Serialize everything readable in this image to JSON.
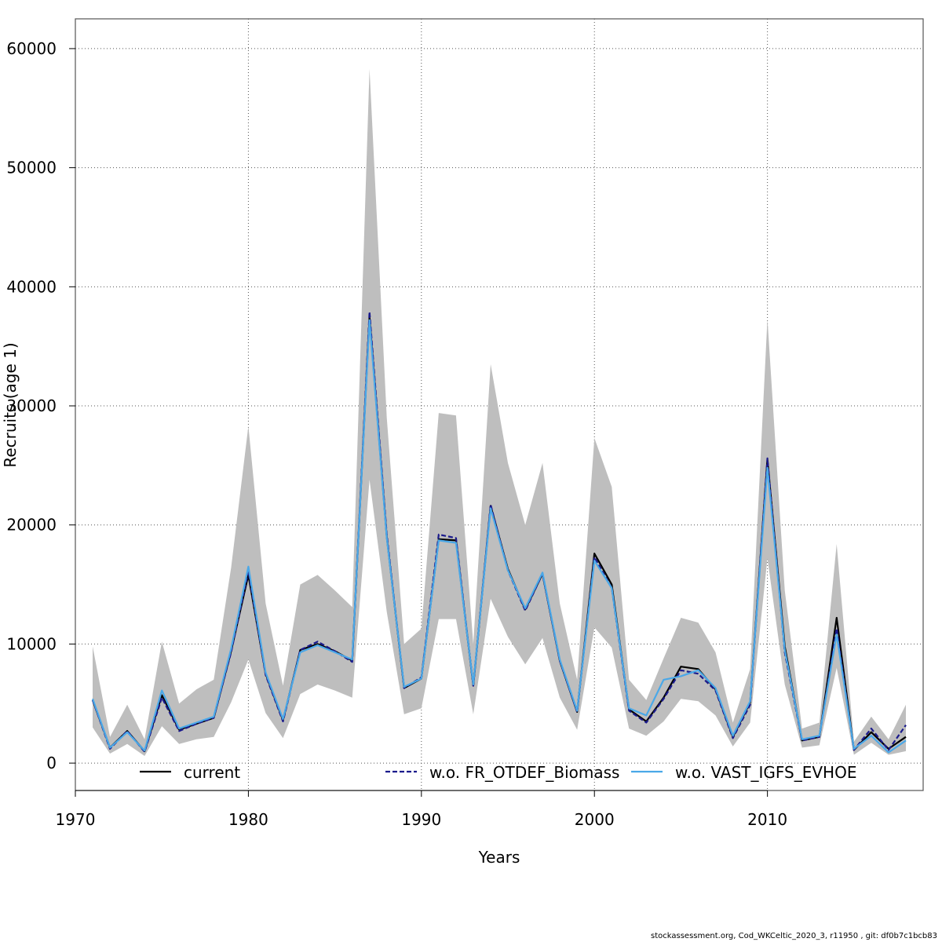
{
  "chart_data": {
    "type": "line",
    "title": "",
    "xlabel": "Years",
    "ylabel": "Recruits (age 1)",
    "xlim": [
      1970,
      2019
    ],
    "ylim": [
      -2300,
      62500
    ],
    "xticks": [
      1970,
      1980,
      1990,
      2000,
      2010
    ],
    "yticks": [
      0,
      10000,
      20000,
      30000,
      40000,
      50000,
      60000
    ],
    "grid": true,
    "legend_position": "bottom",
    "x": [
      1971,
      1972,
      1973,
      1974,
      1975,
      1976,
      1977,
      1978,
      1979,
      1980,
      1981,
      1982,
      1983,
      1984,
      1985,
      1986,
      1987,
      1988,
      1989,
      1990,
      1991,
      1992,
      1993,
      1994,
      1995,
      1996,
      1997,
      1998,
      1999,
      2000,
      2001,
      2002,
      2003,
      2004,
      2005,
      2006,
      2007,
      2008,
      2009,
      2010,
      2011,
      2012,
      2013,
      2014,
      2015,
      2016,
      2017,
      2018
    ],
    "band": {
      "color": "#bebebe",
      "upper": [
        9800,
        2200,
        4900,
        2000,
        10200,
        5000,
        6200,
        7000,
        16400,
        28300,
        13400,
        6500,
        15000,
        15800,
        14500,
        13100,
        58300,
        29000,
        10000,
        11300,
        29400,
        29200,
        10000,
        33500,
        25200,
        20000,
        25200,
        13400,
        7000,
        27300,
        23200,
        7000,
        5300,
        8800,
        12200,
        11800,
        9300,
        3400,
        7900,
        37300,
        14500,
        2900,
        3400,
        18400,
        1800,
        3900,
        2000,
        4900
      ],
      "lower": [
        3000,
        800,
        1600,
        600,
        3100,
        1600,
        2000,
        2200,
        5100,
        8700,
        4200,
        2100,
        5800,
        6600,
        6100,
        5500,
        23800,
        12700,
        4100,
        4600,
        12100,
        12100,
        4100,
        13800,
        10600,
        8300,
        10500,
        5500,
        2800,
        11400,
        9700,
        2900,
        2300,
        3500,
        5400,
        5200,
        4000,
        1400,
        3400,
        17200,
        6600,
        1300,
        1500,
        8000,
        700,
        1700,
        700,
        1000
      ]
    },
    "series": [
      {
        "name": "current",
        "color": "#000000",
        "dash": "",
        "values": [
          5300,
          1300,
          2700,
          1000,
          5700,
          2800,
          3300,
          3800,
          9400,
          15800,
          7500,
          3600,
          9500,
          10000,
          9400,
          8600,
          37500,
          19000,
          6300,
          7100,
          18800,
          18700,
          6500,
          21600,
          16300,
          12900,
          15900,
          8600,
          4300,
          17600,
          15000,
          4500,
          3500,
          5500,
          8100,
          7900,
          6200,
          2200,
          5100,
          25500,
          9800,
          1900,
          2200,
          12200,
          1100,
          2600,
          1200,
          2200
        ]
      },
      {
        "name": "w.o. FR_OTDEF_Biomass",
        "color": "#1a1a8c",
        "dash": "6,3",
        "values": [
          5300,
          1200,
          2700,
          950,
          5500,
          2700,
          3300,
          3800,
          9300,
          16100,
          7400,
          3500,
          9500,
          10200,
          9400,
          8500,
          37900,
          19200,
          6300,
          7200,
          19200,
          18900,
          6500,
          21700,
          16200,
          12800,
          15900,
          8600,
          4300,
          17300,
          14700,
          4400,
          3400,
          5400,
          7800,
          7500,
          6100,
          2100,
          4900,
          25600,
          9300,
          1900,
          2200,
          11300,
          1100,
          2900,
          1100,
          3200
        ]
      },
      {
        "name": "w.o. VAST_IGFS_EVHOE",
        "color": "#4aa8e8",
        "dash": "",
        "values": [
          5400,
          1300,
          2600,
          1050,
          6100,
          2900,
          3400,
          3900,
          9600,
          16500,
          7600,
          3700,
          9300,
          9900,
          9300,
          8700,
          37200,
          18900,
          6400,
          7100,
          18700,
          18500,
          6600,
          21400,
          16200,
          13000,
          16000,
          8700,
          4400,
          17000,
          14700,
          4600,
          4000,
          7000,
          7300,
          7800,
          6300,
          2300,
          5200,
          24800,
          9500,
          2000,
          2300,
          10800,
          1200,
          2300,
          900,
          1900
        ]
      }
    ],
    "footer": "stockassessment.org, Cod_WKCeltic_2020_3, r11950 , git: df0b7c1bcb83"
  }
}
